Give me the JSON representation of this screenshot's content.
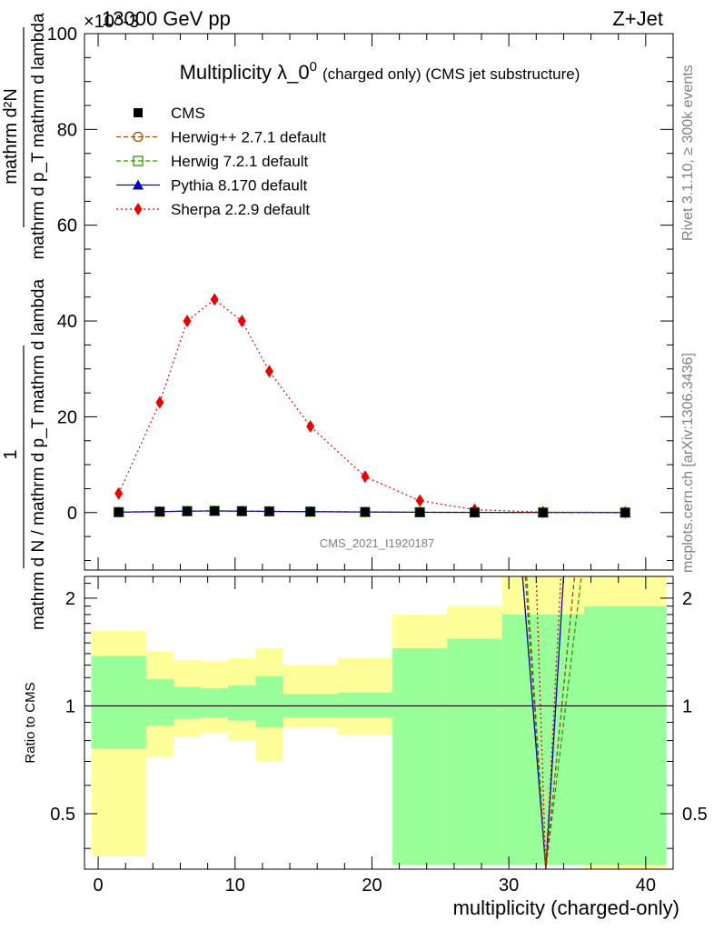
{
  "header": {
    "left": "13000 GeV pp",
    "right": "Z+Jet",
    "exponent": "×10^-3"
  },
  "chart_data": {
    "type": "line",
    "title": "Multiplicity λ_0^0 (charged only) (CMS jet substructure)",
    "title_parts": {
      "main": "Multiplicity λ_0",
      "sup": "0",
      "tail": "(charged only) (CMS jet substructure)"
    },
    "ylabel_top": {
      "numerator": "1",
      "denominator": "mathrm d N / mathrm d p_T mathrm d lambda",
      "top_num": "mathrm d²N",
      "top_den": "mathrm d p_T mathrm d lambda"
    },
    "xlabel": "multiplicity (charged-only)",
    "ratio_ylabel": "Ratio to CMS",
    "watermark": "CMS_2021_I1920187",
    "side_text_top": "Rivet 3.1.10, ≥ 300k events",
    "side_text_bottom": "mcplots.cern.ch [arXiv:1306.3436]",
    "x_edges": [
      0,
      3,
      6,
      7,
      10,
      11,
      14,
      17,
      20,
      23,
      26,
      29,
      32,
      35,
      42
    ],
    "xlim": [
      -1,
      42
    ],
    "ylim": [
      -12,
      100
    ],
    "y_scale_factor": 0.001,
    "x_ticks": [
      0,
      10,
      20,
      30,
      40
    ],
    "y_ticks": [
      0,
      20,
      40,
      60,
      80,
      100
    ],
    "ratio_ylim": [
      0.35,
      2.3
    ],
    "ratio_ticks": [
      0.5,
      1,
      2
    ],
    "x_points": [
      1.5,
      4.5,
      6.5,
      8.5,
      10.5,
      12.5,
      15.5,
      19.5,
      23.5,
      27.5,
      32.5,
      38.5
    ],
    "series": [
      {
        "name": "CMS",
        "marker": "square-filled",
        "color": "#000000",
        "values": [
          0.1,
          0.2,
          0.3,
          0.35,
          0.3,
          0.25,
          0.2,
          0.12,
          0.07,
          0.04,
          0.02,
          0.01
        ]
      },
      {
        "name": "Herwig++ 2.7.1 default",
        "marker": "circle-open",
        "color": "#994C00",
        "dash": "5,3",
        "values": [
          0.1,
          0.2,
          0.3,
          0.35,
          0.3,
          0.25,
          0.2,
          0.12,
          0.07,
          0.04,
          0.02,
          0.01
        ]
      },
      {
        "name": "Herwig 7.2.1 default",
        "marker": "square-open",
        "color": "#339900",
        "dash": "5,3",
        "values": [
          0.1,
          0.2,
          0.3,
          0.35,
          0.3,
          0.25,
          0.2,
          0.12,
          0.07,
          0.04,
          0.02,
          0.01
        ]
      },
      {
        "name": "Pythia 8.170 default",
        "marker": "triangle-filled",
        "color": "#0000CC",
        "dash": "",
        "values": [
          0.1,
          0.2,
          0.3,
          0.35,
          0.3,
          0.25,
          0.2,
          0.12,
          0.07,
          0.04,
          0.02,
          0.01
        ]
      },
      {
        "name": "Sherpa 2.2.9 default",
        "marker": "diamond-filled",
        "color": "#EE0000",
        "dash": "2,3",
        "values": [
          4,
          23,
          40,
          44.5,
          40,
          29.5,
          18,
          7.5,
          2.5,
          0.6,
          0.1,
          0.05
        ]
      }
    ],
    "ratio_bands": {
      "yellow": [
        [
          0.38,
          1.62
        ],
        [
          0.72,
          1.42
        ],
        [
          0.82,
          1.34
        ],
        [
          0.84,
          1.33
        ],
        [
          0.8,
          1.36
        ],
        [
          0.7,
          1.45
        ],
        [
          0.87,
          1.3
        ],
        [
          0.83,
          1.36
        ],
        [
          0.37,
          1.8
        ],
        [
          0.36,
          1.9
        ],
        [
          0.56,
          2.3
        ],
        [
          0.35,
          2.3
        ]
      ],
      "green": [
        [
          0.76,
          1.38
        ],
        [
          0.88,
          1.19
        ],
        [
          0.92,
          1.13
        ],
        [
          0.93,
          1.12
        ],
        [
          0.91,
          1.14
        ],
        [
          0.87,
          1.21
        ],
        [
          0.93,
          1.08
        ],
        [
          0.93,
          1.09
        ],
        [
          0.36,
          1.45
        ],
        [
          0.36,
          1.54
        ],
        [
          0.36,
          1.8
        ],
        [
          0.36,
          1.9
        ]
      ],
      "bin_edges": [
        -0.5,
        3.5,
        5.5,
        7.5,
        9.5,
        11.5,
        13.5,
        17.5,
        21.5,
        25.5,
        29.5,
        35.5,
        41.5
      ]
    },
    "ratio_lines": [
      {
        "name": "Pythia 8.170 default",
        "color": "#0000CC",
        "dash": "",
        "x1": 31.0,
        "x2": 34.0
      },
      {
        "name": "Herwig 7.2.1 default",
        "color": "#339900",
        "dash": "5,3",
        "x1": 31.3,
        "x2": 35.3
      },
      {
        "name": "Herwig++ 2.7.1 default",
        "color": "#994C00",
        "dash": "5,3",
        "x1": 31.2,
        "x2": 34.8
      },
      {
        "name": "Sherpa 2.2.9 default",
        "color": "#EE0000",
        "dash": "2,3",
        "x1": 32.0,
        "x2": 33.8
      }
    ],
    "ratio_dip_x": 32.7
  }
}
